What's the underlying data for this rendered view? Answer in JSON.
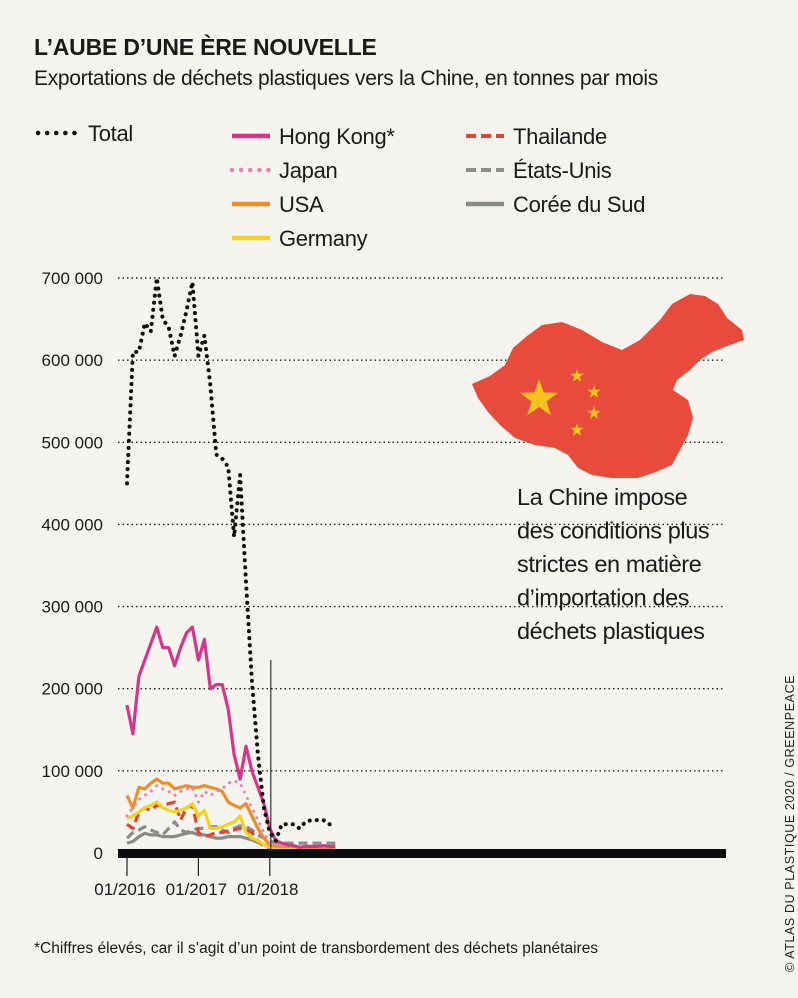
{
  "header": {
    "title": "L’AUBE D’UNE ÈRE NOUVELLE",
    "subtitle": "Exportations de déchets plastiques vers la Chine, en tonnes par mois"
  },
  "footnote": "*Chiffres élevés, car il s’agit d’un point de transbordement des déchets planétaires",
  "credit": "© ATLAS DU PLASTIQUE 2020 / GREENPEACE",
  "annotation": [
    "La Chine impose",
    "des conditions plus",
    "strictes en matière",
    "d’importation des",
    "déchets plastiques"
  ],
  "colors": {
    "total": "#111111",
    "hong_kong": "#d6368a",
    "japan": "#e882b6",
    "usa": "#ee8e2a",
    "germany": "#f5d21c",
    "thailande": "#e2452b",
    "etats_unis": "#8c8c8c",
    "coree_du_sud": "#8a8a8a",
    "china_map": "#e84b3c",
    "stars": "#f7c21d"
  },
  "icons": [
    "china-map-icon"
  ],
  "chart_data": {
    "type": "line",
    "title": "L’AUBE D’UNE ÈRE NOUVELLE",
    "subtitle": "Exportations de déchets plastiques vers la Chine, en tonnes par mois",
    "xlabel": "",
    "ylabel": "",
    "x_ticks": [
      "01/2016",
      "01/2017",
      "01/2018"
    ],
    "y_ticks": [
      "0",
      "100 000",
      "200 000",
      "300 000",
      "400 000",
      "500 000",
      "600 000",
      "700 000"
    ],
    "ylim": [
      0,
      700000
    ],
    "grid": "horizontal dotted",
    "legend_position": "top",
    "x": [
      "2016-01",
      "2016-02",
      "2016-03",
      "2016-04",
      "2016-05",
      "2016-06",
      "2016-07",
      "2016-08",
      "2016-09",
      "2016-10",
      "2016-11",
      "2016-12",
      "2017-01",
      "2017-02",
      "2017-03",
      "2017-04",
      "2017-05",
      "2017-06",
      "2017-07",
      "2017-08",
      "2017-09",
      "2017-10",
      "2017-11",
      "2017-12",
      "2018-01",
      "2018-02",
      "2018-03",
      "2018-04",
      "2018-05",
      "2018-06",
      "2018-07",
      "2018-08",
      "2018-09",
      "2018-10",
      "2018-11",
      "2018-12"
    ],
    "series": [
      {
        "name": "Total",
        "key": "total",
        "style": "dotted",
        "values": [
          450000,
          610000,
          610000,
          645000,
          635000,
          700000,
          650000,
          640000,
          605000,
          630000,
          660000,
          695000,
          605000,
          630000,
          570000,
          485000,
          480000,
          470000,
          385000,
          460000,
          330000,
          210000,
          120000,
          55000,
          25000,
          15000,
          35000,
          35000,
          35000,
          30000,
          38000,
          40000,
          40000,
          40000,
          35000,
          36000
        ]
      },
      {
        "name": "Hong Kong*",
        "key": "hong_kong",
        "style": "solid",
        "values": [
          180000,
          145000,
          215000,
          235000,
          255000,
          275000,
          250000,
          250000,
          228000,
          250000,
          268000,
          275000,
          235000,
          260000,
          200000,
          205000,
          205000,
          175000,
          120000,
          90000,
          130000,
          100000,
          80000,
          60000,
          30000,
          15000,
          12000,
          10000,
          9000,
          7000,
          8000,
          8000,
          8000,
          9000,
          8000,
          8000
        ]
      },
      {
        "name": "Japan",
        "key": "japan",
        "style": "dotted",
        "values": [
          45000,
          55000,
          65000,
          70000,
          75000,
          82000,
          78000,
          75000,
          70000,
          75000,
          78000,
          80000,
          62000,
          75000,
          70000,
          75000,
          78000,
          85000,
          88000,
          85000,
          70000,
          55000,
          40000,
          25000,
          12000,
          10000,
          9000,
          8000,
          8000,
          7000,
          7000,
          7000,
          7000,
          6000,
          6000,
          6000
        ]
      },
      {
        "name": "USA",
        "key": "usa",
        "style": "solid",
        "values": [
          70000,
          55000,
          80000,
          78000,
          85000,
          90000,
          85000,
          85000,
          78000,
          80000,
          82000,
          80000,
          80000,
          82000,
          80000,
          78000,
          75000,
          62000,
          58000,
          55000,
          60000,
          45000,
          30000,
          18000,
          10000,
          8000,
          8000,
          8000,
          8000,
          7000,
          7000,
          7000,
          7000,
          7000,
          7000,
          7000
        ]
      },
      {
        "name": "Germany",
        "key": "germany",
        "style": "solid",
        "values": [
          42000,
          45000,
          50000,
          55000,
          58000,
          62000,
          55000,
          52000,
          50000,
          52000,
          55000,
          60000,
          45000,
          52000,
          30000,
          30000,
          32000,
          35000,
          38000,
          45000,
          25000,
          18000,
          15000,
          10000,
          7000,
          6000,
          6000,
          6000,
          5000,
          5000,
          5000,
          5000,
          5000,
          5000,
          5000,
          5000
        ]
      },
      {
        "name": "Thailande",
        "key": "thailande",
        "style": "dashed",
        "values": [
          35000,
          30000,
          50000,
          55000,
          52000,
          58000,
          58000,
          60000,
          62000,
          40000,
          55000,
          58000,
          25000,
          20000,
          22000,
          25000,
          25000,
          27000,
          28000,
          30000,
          28000,
          25000,
          15000,
          8000,
          4000,
          3000,
          3000,
          3000,
          3000,
          3000,
          3000,
          3000,
          3000,
          3000,
          3000,
          3000
        ]
      },
      {
        "name": "États-Unis",
        "key": "etats_unis",
        "style": "dashed",
        "values": [
          18000,
          25000,
          28000,
          32000,
          28000,
          25000,
          22000,
          30000,
          38000,
          28000,
          25000,
          28000,
          30000,
          30000,
          32000,
          32000,
          28000,
          25000,
          30000,
          33000,
          32000,
          28000,
          22000,
          18000,
          15000,
          12000,
          12000,
          12000,
          12000,
          12000,
          12000,
          12000,
          12000,
          12000,
          12000,
          12000
        ]
      },
      {
        "name": "Corée du Sud",
        "key": "coree_du_sud",
        "style": "solid",
        "values": [
          12000,
          14000,
          20000,
          24000,
          22000,
          22000,
          20000,
          20000,
          20000,
          22000,
          24000,
          25000,
          22000,
          22000,
          20000,
          18000,
          18000,
          20000,
          20000,
          20000,
          18000,
          16000,
          13000,
          10000,
          8000,
          7000,
          7000,
          6000,
          6000,
          6000,
          6000,
          6000,
          6000,
          6000,
          6000,
          6000
        ]
      }
    ]
  }
}
